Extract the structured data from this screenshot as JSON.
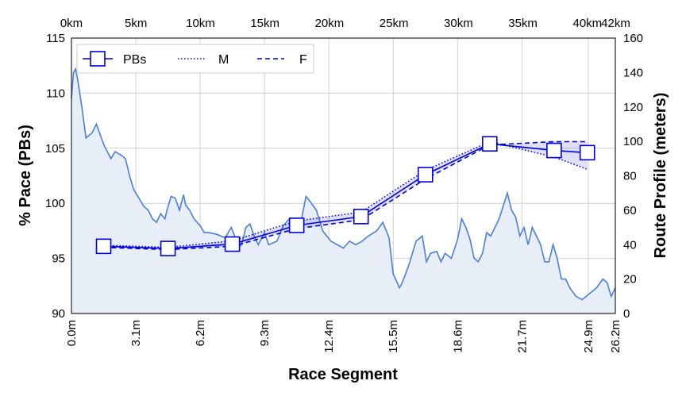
{
  "chart_data": {
    "type": "line",
    "xlabel": "Race Segment",
    "ylabel": "% Pace (PBs)",
    "y2label": "Route Profile (meters)",
    "ylim": [
      90,
      115
    ],
    "y2lim": [
      0,
      160
    ],
    "xlim": [
      0,
      26.2
    ],
    "x_ticks": [
      0,
      3.1,
      6.2,
      9.3,
      12.4,
      15.5,
      18.6,
      21.7,
      24.9,
      26.2
    ],
    "x_tick_labels": [
      "0.0m",
      "3.1m",
      "6.2m",
      "9.3m",
      "12.4m",
      "15.5m",
      "18.6m",
      "21.7m",
      "24.9m",
      "26.2m"
    ],
    "y_ticks": [
      90,
      95,
      100,
      105,
      110,
      115
    ],
    "y2_ticks": [
      0,
      20,
      40,
      60,
      80,
      100,
      120,
      140,
      160
    ],
    "top_ticks_km": [
      0,
      5,
      10,
      15,
      20,
      25,
      30,
      35,
      40,
      42.195
    ],
    "top_tick_labels": [
      "0km",
      "5km",
      "10km",
      "15km",
      "20km",
      "25km",
      "30km",
      "35km",
      "40km",
      "42km"
    ],
    "grid": true,
    "legend_placement": "top-left",
    "colors": {
      "series": "#0000dd",
      "profile_line": "#4a7fd4",
      "profile_fill": "#e8eef8"
    },
    "series": [
      {
        "name": "PBs",
        "style": "solid-square-markers",
        "x": [
          1.55,
          4.65,
          7.75,
          10.85,
          13.95,
          17.05,
          20.15,
          23.25,
          24.85
        ],
        "values": [
          96.1,
          95.9,
          96.3,
          98.0,
          98.8,
          102.6,
          105.4,
          104.8,
          104.6
        ]
      },
      {
        "name": "M",
        "style": "dotted",
        "x": [
          1.55,
          4.65,
          7.75,
          10.85,
          13.95,
          17.05,
          20.15,
          23.25,
          24.85
        ],
        "values": [
          96.2,
          96.0,
          96.6,
          98.4,
          99.2,
          103.0,
          105.6,
          104.2,
          103.1
        ]
      },
      {
        "name": "F",
        "style": "dashed",
        "x": [
          1.55,
          4.65,
          7.75,
          10.85,
          13.95,
          17.05,
          20.15,
          23.25,
          24.85
        ],
        "values": [
          96.0,
          95.8,
          96.1,
          97.7,
          98.5,
          102.2,
          105.3,
          105.6,
          105.6
        ]
      }
    ],
    "route_profile": {
      "x": [
        0,
        0.1,
        0.2,
        0.3,
        0.5,
        0.7,
        1.0,
        1.2,
        1.5,
        1.6,
        1.9,
        2.1,
        2.4,
        2.6,
        2.8,
        3.0,
        3.1,
        3.3,
        3.5,
        3.7,
        3.9,
        4.1,
        4.3,
        4.5,
        4.6,
        4.8,
        5.0,
        5.2,
        5.4,
        5.5,
        5.7,
        5.9,
        6.2,
        6.4,
        6.6,
        7.0,
        7.4,
        7.7,
        7.9,
        8.0,
        8.2,
        8.4,
        8.6,
        8.8,
        9.0,
        9.3,
        9.5,
        9.9,
        10.2,
        10.5,
        10.8,
        11.0,
        11.3,
        11.5,
        11.8,
        12.1,
        12.3,
        12.5,
        12.8,
        13.1,
        13.4,
        13.7,
        14.0,
        14.3,
        14.7,
        15.0,
        15.3,
        15.5,
        15.8,
        15.9,
        16.1,
        16.3,
        16.6,
        16.9,
        17.1,
        17.3,
        17.6,
        17.8,
        18.0,
        18.3,
        18.6,
        18.8,
        19.0,
        19.2,
        19.4,
        19.6,
        19.8,
        20.0,
        20.2,
        20.6,
        21.0,
        21.2,
        21.4,
        21.6,
        21.8,
        22.0,
        22.2,
        22.4,
        22.6,
        22.8,
        23.0,
        23.2,
        23.4,
        23.6,
        23.8,
        24.0,
        24.3,
        24.6,
        24.9,
        25.3,
        25.6,
        25.8,
        26.0,
        26.2
      ],
      "elevation": [
        125,
        140,
        142,
        136,
        120,
        102,
        105,
        110,
        100,
        97,
        90,
        94,
        92,
        90,
        80,
        72,
        70,
        66,
        62,
        60,
        55,
        53,
        58,
        55,
        60,
        68,
        67,
        60,
        69,
        63,
        60,
        55,
        51,
        47,
        47,
        46,
        44,
        50,
        44,
        38,
        40,
        50,
        52,
        45,
        40,
        47,
        40,
        42,
        51,
        55,
        55,
        50,
        68,
        65,
        60,
        48,
        45,
        42,
        40,
        38,
        42,
        40,
        42,
        45,
        48,
        53,
        44,
        23,
        15,
        17,
        23,
        30,
        42,
        45,
        30,
        35,
        36,
        30,
        35,
        32,
        43,
        55,
        50,
        43,
        32,
        30,
        35,
        47,
        45,
        55,
        70,
        60,
        56,
        45,
        50,
        40,
        50,
        45,
        40,
        30,
        30,
        40,
        32,
        20,
        20,
        15,
        10,
        8,
        11,
        15,
        20,
        18,
        10,
        15
      ]
    }
  }
}
